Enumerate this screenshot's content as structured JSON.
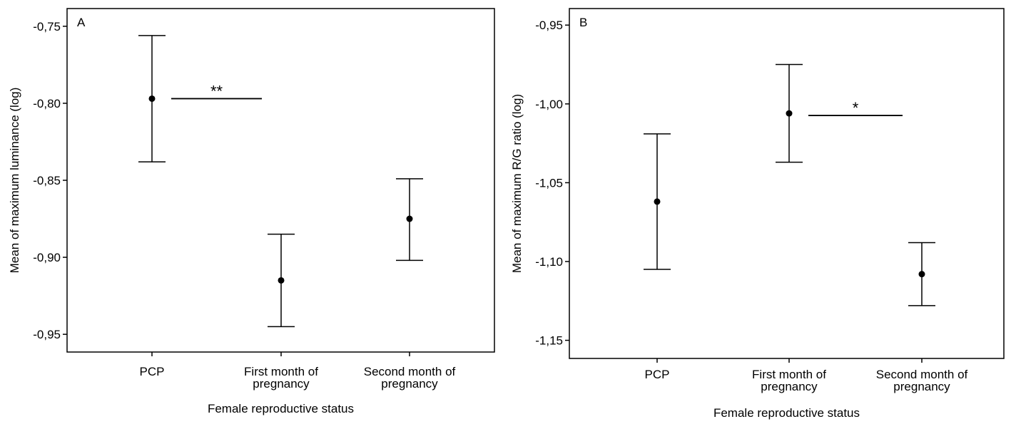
{
  "chart_data": [
    {
      "type": "errorbar",
      "panel_label": "A",
      "xlabel": "Female reproductive status",
      "ylabel": "Mean of maximum luminance (log)",
      "ylim": [
        -0.9615,
        -0.7385
      ],
      "yticks": [
        -0.75,
        -0.8,
        -0.85,
        -0.9,
        -0.95
      ],
      "ytick_labels": [
        "-0,75",
        "-0,80",
        "-0,85",
        "-0,90",
        "-0,95"
      ],
      "categories": [
        [
          "PCP"
        ],
        [
          "First month of",
          "pregnancy"
        ],
        [
          "Second month of",
          "pregnancy"
        ]
      ],
      "means": [
        -0.797,
        -0.915,
        -0.875
      ],
      "ci_lower": [
        -0.838,
        -0.945,
        -0.902
      ],
      "ci_upper": [
        -0.756,
        -0.885,
        -0.849
      ],
      "significance": {
        "from": 0,
        "to": 1,
        "label": "**"
      }
    },
    {
      "type": "errorbar",
      "panel_label": "B",
      "xlabel": "Female reproductive status",
      "ylabel": "Mean of maximum R/G ratio (log)",
      "ylim": [
        -1.1615,
        -0.9395
      ],
      "yticks": [
        -0.95,
        -1.0,
        -1.05,
        -1.1,
        -1.15
      ],
      "ytick_labels": [
        "-0,95",
        "-1,00",
        "-1,05",
        "-1,10",
        "-1,15"
      ],
      "categories": [
        [
          "PCP"
        ],
        [
          "First month of",
          "pregnancy"
        ],
        [
          "Second month of",
          "pregnancy"
        ]
      ],
      "means": [
        -1.062,
        -1.006,
        -1.108
      ],
      "ci_lower": [
        -1.105,
        -1.037,
        -1.128
      ],
      "ci_upper": [
        -1.019,
        -0.975,
        -1.088
      ],
      "significance": {
        "from": 1,
        "to": 2,
        "label": "*"
      }
    }
  ]
}
